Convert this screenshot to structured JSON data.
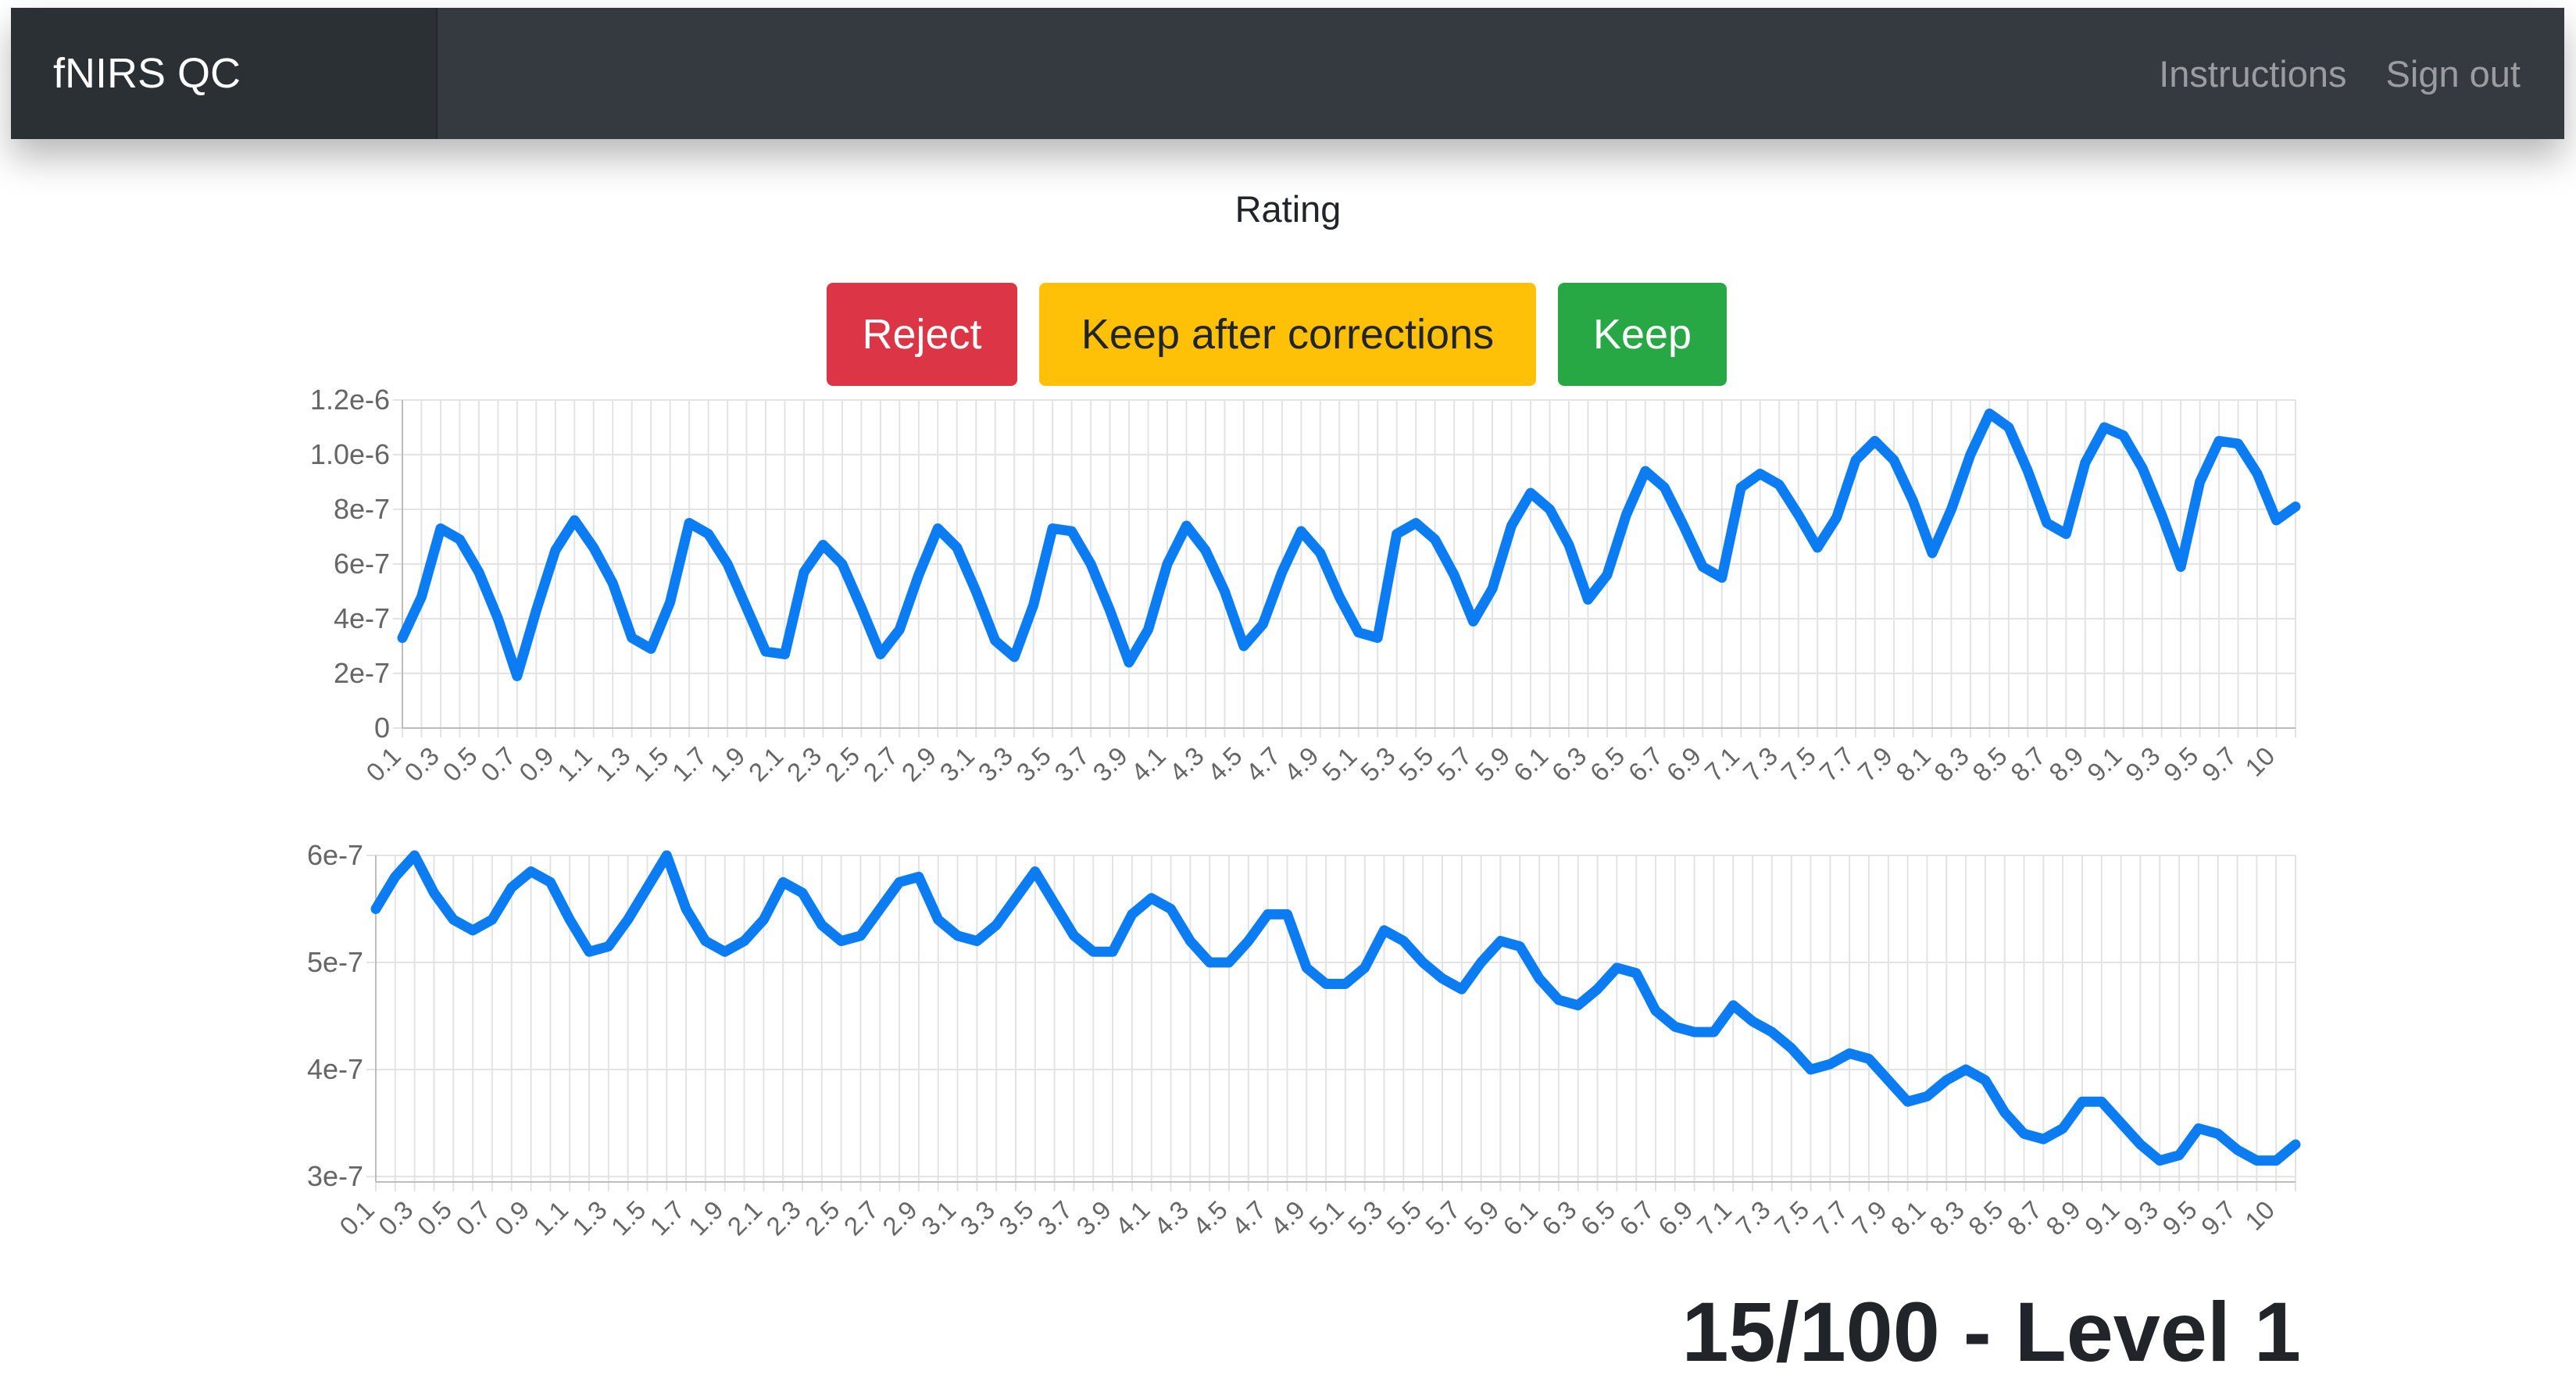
{
  "navbar": {
    "brand": "fNIRS QC",
    "links": [
      "Instructions",
      "Sign out"
    ]
  },
  "rating": {
    "label": "Rating",
    "buttons": {
      "reject": "Reject",
      "keep_after_corrections": "Keep after corrections",
      "keep": "Keep"
    },
    "colors": {
      "reject": "#dc3545",
      "keep_after_corrections": "#ffc107",
      "keep": "#28a745"
    }
  },
  "progress": "15/100 - Level 1",
  "chart_data": [
    {
      "type": "line",
      "title": "",
      "xlabel": "",
      "ylabel": "",
      "ylim": [
        0,
        1.2e-06
      ],
      "y_ticks": [
        "0",
        "2e-7",
        "4e-7",
        "6e-7",
        "8e-7",
        "1.0e-6",
        "1.2e-6"
      ],
      "grid": true,
      "legend": "none",
      "line_color": "#0b7cf2",
      "x": [
        0.1,
        0.2,
        0.3,
        0.4,
        0.5,
        0.6,
        0.7,
        0.8,
        0.9,
        1.0,
        1.1,
        1.2,
        1.3,
        1.4,
        1.5,
        1.6,
        1.7,
        1.8,
        1.9,
        2.0,
        2.1,
        2.2,
        2.3,
        2.4,
        2.5,
        2.6,
        2.7,
        2.8,
        2.9,
        3.0,
        3.1,
        3.2,
        3.3,
        3.4,
        3.5,
        3.6,
        3.7,
        3.8,
        3.9,
        4.0,
        4.1,
        4.2,
        4.3,
        4.4,
        4.5,
        4.6,
        4.7,
        4.8,
        4.9,
        5.0,
        5.1,
        5.2,
        5.3,
        5.4,
        5.5,
        5.6,
        5.7,
        5.8,
        5.9,
        6.0,
        6.1,
        6.2,
        6.3,
        6.4,
        6.5,
        6.6,
        6.7,
        6.8,
        6.9,
        7.0,
        7.1,
        7.2,
        7.3,
        7.4,
        7.5,
        7.6,
        7.7,
        7.8,
        7.9,
        8.0,
        8.1,
        8.2,
        8.3,
        8.4,
        8.5,
        8.6,
        8.7,
        8.8,
        8.9,
        9.0,
        9.1,
        9.2,
        9.3,
        9.4,
        9.5,
        9.6,
        9.7,
        9.8,
        9.9,
        10
      ],
      "x_tick_labels": [
        "0.1",
        "0.3",
        "0.5",
        "0.7",
        "0.9",
        "1.1",
        "1.3",
        "1.5",
        "1.7",
        "1.9",
        "2.1",
        "2.3",
        "2.5",
        "2.7",
        "2.9",
        "3.1",
        "3.3",
        "3.5",
        "3.7",
        "3.9",
        "4.1",
        "4.3",
        "4.5",
        "4.7",
        "4.9",
        "5.1",
        "5.3",
        "5.5",
        "5.7",
        "5.9",
        "6.1",
        "6.3",
        "6.5",
        "6.7",
        "6.9",
        "7.1",
        "7.3",
        "7.5",
        "7.7",
        "7.9",
        "8.1",
        "8.3",
        "8.5",
        "8.7",
        "8.9",
        "9.1",
        "9.3",
        "9.5",
        "9.7",
        "10"
      ],
      "values": [
        3.3e-07,
        4.8e-07,
        7.3e-07,
        6.9e-07,
        5.7e-07,
        4e-07,
        1.9e-07,
        4.3e-07,
        6.5e-07,
        7.6e-07,
        6.6e-07,
        5.3e-07,
        3.3e-07,
        2.9e-07,
        4.6e-07,
        7.5e-07,
        7.1e-07,
        6e-07,
        4.4e-07,
        2.8e-07,
        2.7e-07,
        5.7e-07,
        6.7e-07,
        6e-07,
        4.4e-07,
        2.7e-07,
        3.6e-07,
        5.6e-07,
        7.3e-07,
        6.6e-07,
        5e-07,
        3.2e-07,
        2.6e-07,
        4.5e-07,
        7.3e-07,
        7.2e-07,
        6e-07,
        4.3e-07,
        2.4e-07,
        3.6e-07,
        6e-07,
        7.4e-07,
        6.5e-07,
        5e-07,
        3e-07,
        3.8e-07,
        5.7e-07,
        7.2e-07,
        6.4e-07,
        4.8e-07,
        3.5e-07,
        3.3e-07,
        7.1e-07,
        7.5e-07,
        6.9e-07,
        5.6e-07,
        3.9e-07,
        5.1e-07,
        7.4e-07,
        8.6e-07,
        8e-07,
        6.7e-07,
        4.7e-07,
        5.6e-07,
        7.8e-07,
        9.4e-07,
        8.8e-07,
        7.4e-07,
        5.9e-07,
        5.5e-07,
        8.8e-07,
        9.3e-07,
        8.9e-07,
        7.8e-07,
        6.6e-07,
        7.7e-07,
        9.8e-07,
        1.05e-06,
        9.8e-07,
        8.3e-07,
        6.4e-07,
        8e-07,
        1e-06,
        1.15e-06,
        1.1e-06,
        9.4e-07,
        7.5e-07,
        7.1e-07,
        9.7e-07,
        1.1e-06,
        1.07e-06,
        9.5e-07,
        7.8e-07,
        5.9e-07,
        9e-07,
        1.05e-06,
        1.04e-06,
        9.3e-07,
        7.6e-07,
        8.1e-07
      ]
    },
    {
      "type": "line",
      "title": "",
      "xlabel": "",
      "ylabel": "",
      "ylim": [
        2.95e-07,
        6e-07
      ],
      "y_ticks": [
        "3e-7",
        "4e-7",
        "5e-7",
        "6e-7"
      ],
      "grid": true,
      "legend": "none",
      "line_color": "#0b7cf2",
      "x": [
        0.1,
        0.2,
        0.3,
        0.4,
        0.5,
        0.6,
        0.7,
        0.8,
        0.9,
        1.0,
        1.1,
        1.2,
        1.3,
        1.4,
        1.5,
        1.6,
        1.7,
        1.8,
        1.9,
        2.0,
        2.1,
        2.2,
        2.3,
        2.4,
        2.5,
        2.6,
        2.7,
        2.8,
        2.9,
        3.0,
        3.1,
        3.2,
        3.3,
        3.4,
        3.5,
        3.6,
        3.7,
        3.8,
        3.9,
        4.0,
        4.1,
        4.2,
        4.3,
        4.4,
        4.5,
        4.6,
        4.7,
        4.8,
        4.9,
        5.0,
        5.1,
        5.2,
        5.3,
        5.4,
        5.5,
        5.6,
        5.7,
        5.8,
        5.9,
        6.0,
        6.1,
        6.2,
        6.3,
        6.4,
        6.5,
        6.6,
        6.7,
        6.8,
        6.9,
        7.0,
        7.1,
        7.2,
        7.3,
        7.4,
        7.5,
        7.6,
        7.7,
        7.8,
        7.9,
        8.0,
        8.1,
        8.2,
        8.3,
        8.4,
        8.5,
        8.6,
        8.7,
        8.8,
        8.9,
        9.0,
        9.1,
        9.2,
        9.3,
        9.4,
        9.5,
        9.6,
        9.7,
        9.8,
        9.9,
        10
      ],
      "x_tick_labels": [
        "0.1",
        "0.3",
        "0.5",
        "0.7",
        "0.9",
        "1.1",
        "1.3",
        "1.5",
        "1.7",
        "1.9",
        "2.1",
        "2.3",
        "2.5",
        "2.7",
        "2.9",
        "3.1",
        "3.3",
        "3.5",
        "3.7",
        "3.9",
        "4.1",
        "4.3",
        "4.5",
        "4.7",
        "4.9",
        "5.1",
        "5.3",
        "5.5",
        "5.7",
        "5.9",
        "6.1",
        "6.3",
        "6.5",
        "6.7",
        "6.9",
        "7.1",
        "7.3",
        "7.5",
        "7.7",
        "7.9",
        "8.1",
        "8.3",
        "8.5",
        "8.7",
        "8.9",
        "9.1",
        "9.3",
        "9.5",
        "9.7",
        "10"
      ],
      "values": [
        5.5e-07,
        5.8e-07,
        6e-07,
        5.65e-07,
        5.4e-07,
        5.3e-07,
        5.4e-07,
        5.7e-07,
        5.85e-07,
        5.75e-07,
        5.4e-07,
        5.1e-07,
        5.15e-07,
        5.4e-07,
        5.7e-07,
        6e-07,
        5.5e-07,
        5.2e-07,
        5.1e-07,
        5.2e-07,
        5.4e-07,
        5.75e-07,
        5.65e-07,
        5.35e-07,
        5.2e-07,
        5.25e-07,
        5.5e-07,
        5.75e-07,
        5.8e-07,
        5.4e-07,
        5.25e-07,
        5.2e-07,
        5.35e-07,
        5.6e-07,
        5.85e-07,
        5.55e-07,
        5.25e-07,
        5.1e-07,
        5.1e-07,
        5.45e-07,
        5.6e-07,
        5.5e-07,
        5.2e-07,
        5e-07,
        5e-07,
        5.2e-07,
        5.45e-07,
        5.45e-07,
        4.95e-07,
        4.8e-07,
        4.8e-07,
        4.95e-07,
        5.3e-07,
        5.2e-07,
        5e-07,
        4.85e-07,
        4.75e-07,
        5e-07,
        5.2e-07,
        5.15e-07,
        4.85e-07,
        4.65e-07,
        4.6e-07,
        4.75e-07,
        4.95e-07,
        4.9e-07,
        4.55e-07,
        4.4e-07,
        4.35e-07,
        4.35e-07,
        4.6e-07,
        4.45e-07,
        4.35e-07,
        4.2e-07,
        4e-07,
        4.05e-07,
        4.15e-07,
        4.1e-07,
        3.9e-07,
        3.7e-07,
        3.75e-07,
        3.9e-07,
        4e-07,
        3.9e-07,
        3.6e-07,
        3.4e-07,
        3.35e-07,
        3.45e-07,
        3.7e-07,
        3.7e-07,
        3.5e-07,
        3.3e-07,
        3.15e-07,
        3.2e-07,
        3.45e-07,
        3.4e-07,
        3.25e-07,
        3.15e-07,
        3.15e-07,
        3.3e-07
      ]
    }
  ]
}
